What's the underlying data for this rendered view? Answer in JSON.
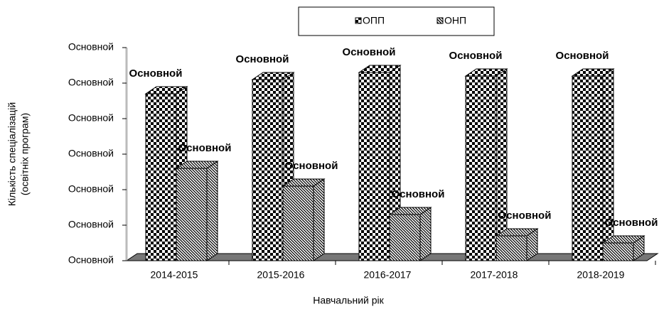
{
  "chart_data": {
    "type": "bar3d",
    "ylabel": [
      "Кількість спеціалізацій",
      "(освітніх  програм)"
    ],
    "xlabel": "Навчальний рік",
    "categories": [
      "2014-2015",
      "2015-2016",
      "2016-2017",
      "2017-2018",
      "2018-2019"
    ],
    "series": [
      {
        "name": "ОПП",
        "color": "#000000",
        "pattern": "checker",
        "values": [
          47,
          51,
          53,
          52,
          52
        ],
        "value_labels": [
          "Основной",
          "Основной",
          "Основной",
          "Основной",
          "Основной"
        ]
      },
      {
        "name": "ОНП",
        "color": "#000000",
        "pattern": "hatch",
        "values": [
          26,
          21,
          13,
          7,
          5
        ],
        "value_labels": [
          "Основной",
          "Основной",
          "Основной",
          "Основной",
          "Основной"
        ]
      }
    ],
    "ylim": [
      0,
      60
    ],
    "yticks": [
      {
        "value": 0,
        "label": "Основной"
      },
      {
        "value": 10,
        "label": "Основной"
      },
      {
        "value": 20,
        "label": "Основной"
      },
      {
        "value": 30,
        "label": "Основной"
      },
      {
        "value": 40,
        "label": "Основной"
      },
      {
        "value": 50,
        "label": "Основной"
      },
      {
        "value": 60,
        "label": "Основной"
      }
    ],
    "legend": "top"
  }
}
